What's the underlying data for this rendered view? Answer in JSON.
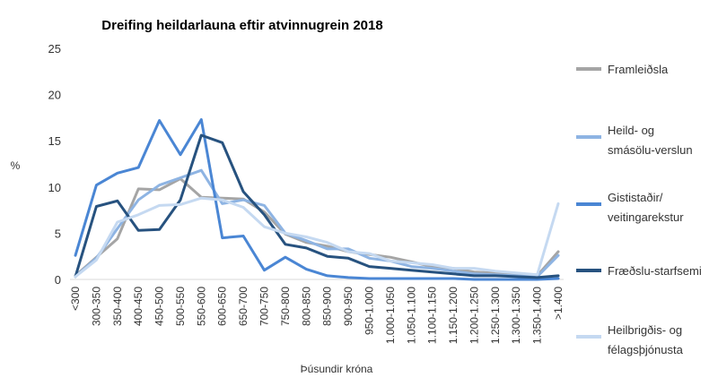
{
  "chart_data": {
    "type": "line",
    "title": "Dreifing heildarlauna eftir atvinnugrein 2018",
    "xlabel": "Þúsundir króna",
    "ylabel": "%",
    "ylim": [
      0,
      25
    ],
    "yticks": [
      "0",
      "5",
      "10",
      "15",
      "20",
      "25"
    ],
    "grid": false,
    "legend_position": "right",
    "categories": [
      "<300",
      "300-350",
      "350-400",
      "400-450",
      "450-500",
      "500-550",
      "550-600",
      "600-650",
      "650-700",
      "700-750",
      "750-800",
      "800-850",
      "850-900",
      "900-950",
      "950-1.000",
      "1.000-1.050",
      "1.050-1.100",
      "1.100-1.150",
      "1.150-1.200",
      "1.200-1.250",
      "1.250-1.300",
      "1.300-1.350",
      "1.350-1.400",
      ">1.400"
    ],
    "series": [
      {
        "name": "Framleiðsla",
        "color": "#a5a5a5",
        "values": [
          0.4,
          2.4,
          4.4,
          9.8,
          9.7,
          10.9,
          8.9,
          8.8,
          8.7,
          7.3,
          4.9,
          4.0,
          3.6,
          3.0,
          2.7,
          2.4,
          1.9,
          1.4,
          1.2,
          0.8,
          0.7,
          0.5,
          0.4,
          3.0
        ]
      },
      {
        "name": "Heild- og smásölu-verslun",
        "color": "#8eb4e3",
        "values": [
          0.3,
          2.3,
          5.5,
          8.6,
          10.2,
          11.0,
          11.8,
          8.2,
          8.6,
          8.0,
          5.0,
          4.2,
          3.3,
          3.3,
          2.3,
          2.0,
          1.4,
          1.2,
          0.9,
          0.6,
          0.5,
          0.4,
          0.3,
          2.6
        ]
      },
      {
        "name": "Gististaðir/ veitingarekstur",
        "color": "#4a86d4",
        "values": [
          2.6,
          10.2,
          11.5,
          12.1,
          17.2,
          13.5,
          17.3,
          4.5,
          4.7,
          1.0,
          2.4,
          1.1,
          0.4,
          0.2,
          0.1,
          0.1,
          0.1,
          0.1,
          0.1,
          0.0,
          0.0,
          0.0,
          0.0,
          0.1
        ]
      },
      {
        "name": "Fræðslu-starfsemi",
        "color": "#27527f",
        "values": [
          0.3,
          7.9,
          8.5,
          5.3,
          5.4,
          8.6,
          15.6,
          14.8,
          9.5,
          7.0,
          3.8,
          3.4,
          2.5,
          2.3,
          1.4,
          1.2,
          1.0,
          0.8,
          0.6,
          0.4,
          0.4,
          0.3,
          0.2,
          0.4
        ]
      },
      {
        "name": "Heilbrigðis- og félagsþjónusta",
        "color": "#c5d9f1",
        "values": [
          0.3,
          2.1,
          6.2,
          7.0,
          8.0,
          8.1,
          8.8,
          8.6,
          7.8,
          5.7,
          5.0,
          4.6,
          4.0,
          3.0,
          2.8,
          2.0,
          1.8,
          1.6,
          1.2,
          1.2,
          0.9,
          0.7,
          0.5,
          8.2
        ]
      }
    ]
  }
}
